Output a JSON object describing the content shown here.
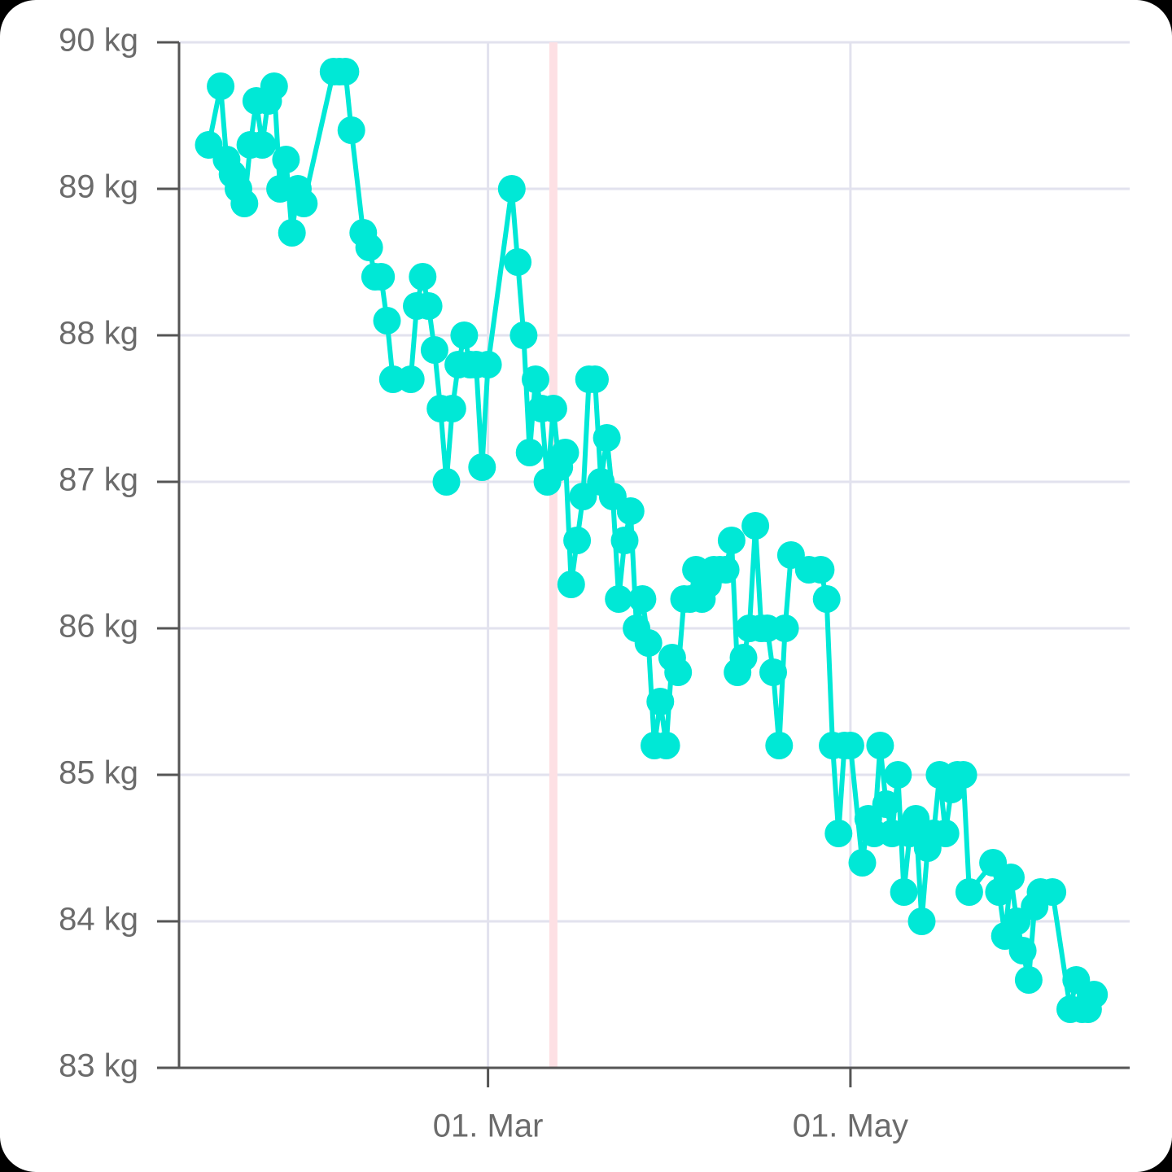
{
  "chart_data": {
    "type": "line",
    "x": [
      13,
      15,
      16,
      17,
      18,
      19,
      20,
      21,
      22,
      23,
      24,
      25,
      26,
      27,
      28,
      29,
      34,
      35,
      36,
      37,
      39,
      40,
      41,
      42,
      43,
      44,
      47,
      48,
      49,
      50,
      51,
      52,
      53,
      54,
      55,
      56,
      57,
      58,
      59,
      60,
      64,
      65,
      66,
      67,
      68,
      69,
      70,
      71,
      72,
      73,
      74,
      75,
      76,
      77,
      78,
      79,
      80,
      81,
      82,
      83,
      84,
      85,
      86,
      87,
      88,
      89,
      90,
      91,
      92,
      93,
      94,
      95,
      96,
      97,
      98,
      99,
      100,
      101,
      102,
      103,
      104,
      105,
      106,
      107,
      108,
      109,
      110,
      111,
      114,
      116,
      117,
      118,
      119,
      120,
      121,
      123,
      124,
      125,
      126,
      127,
      128,
      129,
      130,
      131,
      132,
      133,
      134,
      135,
      136,
      137,
      138,
      139,
      140,
      141,
      145,
      146,
      147,
      148,
      149,
      150,
      151,
      152,
      153,
      155,
      158,
      159,
      160,
      161,
      162
    ],
    "series": [
      {
        "color": "#00e8d6",
        "values": [
          89.3,
          89.7,
          89.2,
          89.1,
          89.0,
          88.9,
          89.3,
          89.6,
          89.3,
          89.6,
          89.7,
          89.0,
          89.2,
          88.7,
          89.0,
          88.9,
          89.8,
          89.8,
          89.8,
          89.4,
          88.7,
          88.6,
          88.4,
          88.4,
          88.1,
          87.7,
          87.7,
          88.2,
          88.4,
          88.2,
          87.9,
          87.5,
          87.0,
          87.5,
          87.8,
          88.0,
          87.8,
          87.8,
          87.1,
          87.8,
          89.0,
          88.5,
          88.0,
          87.2,
          87.7,
          87.5,
          87.0,
          87.5,
          87.1,
          87.2,
          86.3,
          86.6,
          86.9,
          87.7,
          87.7,
          87.0,
          87.3,
          86.9,
          86.2,
          86.6,
          86.8,
          86.0,
          86.2,
          85.9,
          85.2,
          85.5,
          85.2,
          85.8,
          85.7,
          86.2,
          86.2,
          86.4,
          86.2,
          86.3,
          86.4,
          86.4,
          86.4,
          86.6,
          85.7,
          85.8,
          86.0,
          86.7,
          86.0,
          86.0,
          85.7,
          85.2,
          86.0,
          86.5,
          86.4,
          86.4,
          86.2,
          85.2,
          84.6,
          85.2,
          85.2,
          84.4,
          84.7,
          84.6,
          85.2,
          84.8,
          84.6,
          85.0,
          84.2,
          84.6,
          84.7,
          84.0,
          84.5,
          84.6,
          85.0,
          84.6,
          84.9,
          85.0,
          85.0,
          84.2,
          84.4,
          84.2,
          83.9,
          84.3,
          84.0,
          83.8,
          83.6,
          84.1,
          84.2,
          84.2,
          83.4,
          83.6,
          83.4,
          83.4,
          83.5
        ]
      }
    ],
    "xlim": [
      8,
      168
    ],
    "xticks": [
      {
        "value": 60,
        "label": "01. Mar"
      },
      {
        "value": 121,
        "label": "01. May"
      }
    ],
    "ylim": [
      83,
      90
    ],
    "yticks": [
      {
        "value": 83,
        "label": "83 kg"
      },
      {
        "value": 84,
        "label": "84 kg"
      },
      {
        "value": 85,
        "label": "85 kg"
      },
      {
        "value": 86,
        "label": "86 kg"
      },
      {
        "value": 87,
        "label": "87 kg"
      },
      {
        "value": 88,
        "label": "88 kg"
      },
      {
        "value": 89,
        "label": "89 kg"
      },
      {
        "value": 90,
        "label": "90 kg"
      }
    ],
    "grid": true,
    "highlight_x": 71,
    "highlight_color": "#fde0e4"
  }
}
